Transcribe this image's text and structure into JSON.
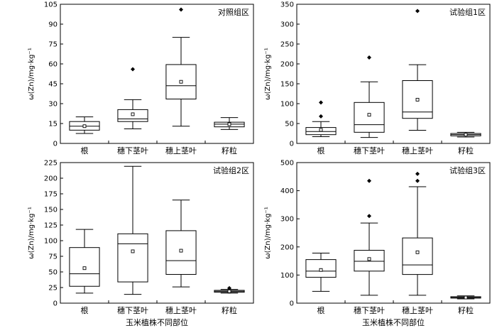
{
  "chart_data": [
    {
      "type": "box",
      "title": "对照组区",
      "ylabel": "ω(Zn)/mg·kg⁻¹",
      "xlabel": "",
      "categories": [
        "根",
        "穗下茎叶",
        "穗上茎叶",
        "籽粒"
      ],
      "ylim": [
        0,
        105
      ],
      "yticks": [
        0,
        15,
        30,
        45,
        60,
        75,
        90,
        105
      ],
      "boxes": [
        {
          "whisker_low": 7.5,
          "q1": 10,
          "median": 13,
          "q3": 16.5,
          "whisker_high": 20,
          "mean": 13,
          "outliers": []
        },
        {
          "whisker_low": 11,
          "q1": 16.5,
          "median": 18.5,
          "q3": 25.5,
          "whisker_high": 33,
          "mean": 22,
          "outliers": [
            56
          ]
        },
        {
          "whisker_low": 13,
          "q1": 33.5,
          "median": 43.5,
          "q3": 59.5,
          "whisker_high": 80,
          "mean": 46.5,
          "outliers": [
            101
          ]
        },
        {
          "whisker_low": 10.5,
          "q1": 12.5,
          "median": 14.5,
          "q3": 16,
          "whisker_high": 19.5,
          "mean": 14.5,
          "outliers": []
        }
      ]
    },
    {
      "type": "box",
      "title": "试验组1区",
      "ylabel": "ω(Zn)/mg·kg⁻¹",
      "xlabel": "",
      "categories": [
        "根",
        "穗下茎叶",
        "穗上茎叶",
        "籽粒"
      ],
      "ylim": [
        0,
        350
      ],
      "yticks": [
        0,
        50,
        100,
        150,
        200,
        250,
        300,
        350
      ],
      "boxes": [
        {
          "whisker_low": 17,
          "q1": 22,
          "median": 30,
          "q3": 40,
          "whisker_high": 55,
          "mean": 34,
          "outliers": [
            68,
            103
          ]
        },
        {
          "whisker_low": 15,
          "q1": 28,
          "median": 47,
          "q3": 103,
          "whisker_high": 155,
          "mean": 72,
          "outliers": [
            216
          ]
        },
        {
          "whisker_low": 33,
          "q1": 63,
          "median": 79,
          "q3": 158,
          "whisker_high": 198,
          "mean": 110,
          "outliers": [
            333
          ]
        },
        {
          "whisker_low": 16,
          "q1": 19,
          "median": 22,
          "q3": 25,
          "whisker_high": 28,
          "mean": 22,
          "outliers": []
        }
      ]
    },
    {
      "type": "box",
      "title": "试验组2区",
      "ylabel": "ω(Zn)/mg·kg⁻¹",
      "xlabel": "玉米植株不同部位",
      "categories": [
        "根",
        "穗下茎叶",
        "穗上茎叶",
        "籽粒"
      ],
      "ylim": [
        0,
        225
      ],
      "yticks": [
        0,
        25,
        50,
        75,
        100,
        125,
        150,
        175,
        200,
        225
      ],
      "boxes": [
        {
          "whisker_low": 16,
          "q1": 27,
          "median": 47,
          "q3": 89,
          "whisker_high": 118,
          "mean": 56,
          "outliers": []
        },
        {
          "whisker_low": 14,
          "q1": 34,
          "median": 95,
          "q3": 111,
          "whisker_high": 219,
          "mean": 83,
          "outliers": []
        },
        {
          "whisker_low": 26,
          "q1": 46,
          "median": 68,
          "q3": 116,
          "whisker_high": 165,
          "mean": 84,
          "outliers": []
        },
        {
          "whisker_low": 16,
          "q1": 17.5,
          "median": 19,
          "q3": 20.5,
          "whisker_high": 22,
          "mean": 19,
          "outliers": [
            24
          ]
        }
      ]
    },
    {
      "type": "box",
      "title": "试验组3区",
      "ylabel": "ω(Zn)/mg·kg⁻¹",
      "xlabel": "玉米植株不同部位",
      "categories": [
        "根",
        "穗下茎叶",
        "穗上茎叶",
        "籽粒"
      ],
      "ylim": [
        0,
        500
      ],
      "yticks": [
        0,
        100,
        200,
        300,
        400,
        500
      ],
      "boxes": [
        {
          "whisker_low": 42,
          "q1": 92,
          "median": 114,
          "q3": 155,
          "whisker_high": 178,
          "mean": 118,
          "outliers": []
        },
        {
          "whisker_low": 28,
          "q1": 114,
          "median": 149,
          "q3": 188,
          "whisker_high": 285,
          "mean": 157,
          "outliers": [
            310,
            435
          ]
        },
        {
          "whisker_low": 28,
          "q1": 102,
          "median": 136,
          "q3": 232,
          "whisker_high": 414,
          "mean": 181,
          "outliers": [
            435,
            460
          ]
        },
        {
          "whisker_low": 15,
          "q1": 18,
          "median": 20,
          "q3": 23,
          "whisker_high": 26,
          "mean": 20,
          "outliers": []
        }
      ]
    }
  ]
}
